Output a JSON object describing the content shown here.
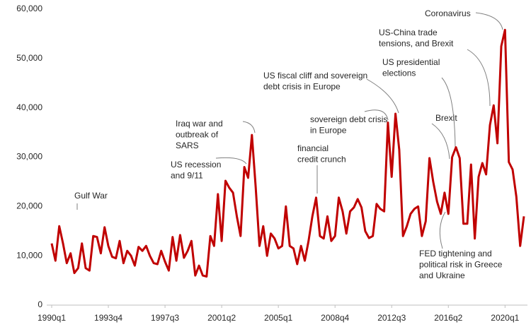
{
  "chart_data": {
    "type": "line",
    "categories": [
      "1990q1",
      null,
      null,
      null,
      null,
      null,
      null,
      null,
      null,
      null,
      null,
      null,
      null,
      null,
      null,
      "1993q4",
      null,
      null,
      null,
      null,
      null,
      null,
      null,
      null,
      null,
      null,
      null,
      null,
      null,
      null,
      "1997q3",
      null,
      null,
      null,
      null,
      null,
      null,
      null,
      null,
      null,
      null,
      null,
      null,
      null,
      null,
      "2001q2",
      null,
      null,
      null,
      null,
      null,
      null,
      null,
      null,
      null,
      null,
      null,
      null,
      null,
      null,
      "2005q1",
      null,
      null,
      null,
      null,
      null,
      null,
      null,
      null,
      null,
      null,
      null,
      null,
      null,
      null,
      "2008q4",
      null,
      null,
      null,
      null,
      null,
      null,
      null,
      null,
      null,
      null,
      null,
      null,
      null,
      null,
      "2012q3",
      null,
      null,
      null,
      null,
      null,
      null,
      null,
      null,
      null,
      null,
      null,
      null,
      null,
      null,
      "2016q2",
      null,
      null,
      null,
      null,
      null,
      null,
      null,
      null,
      null,
      null,
      null,
      null,
      null,
      null,
      "2020q1",
      null,
      null,
      null,
      null,
      null
    ],
    "values": [
      12500,
      9000,
      16000,
      12500,
      8500,
      10500,
      6500,
      7500,
      12500,
      7500,
      7000,
      14000,
      13800,
      10500,
      15800,
      12000,
      9800,
      9500,
      13000,
      8500,
      11000,
      10000,
      8000,
      11800,
      11000,
      12000,
      10000,
      8500,
      8300,
      11000,
      8800,
      7000,
      13800,
      9000,
      14200,
      9600,
      11000,
      13000,
      6000,
      8000,
      6000,
      5800,
      14000,
      12000,
      22500,
      13000,
      25200,
      23800,
      22800,
      18000,
      14000,
      28000,
      25800,
      34500,
      24000,
      12000,
      16000,
      10000,
      14500,
      13500,
      11500,
      12000,
      20000,
      12000,
      11500,
      8300,
      12000,
      9000,
      13000,
      18000,
      21800,
      14000,
      13500,
      18000,
      13000,
      14000,
      21800,
      19000,
      14500,
      19000,
      19800,
      21500,
      19800,
      15000,
      13600,
      14000,
      20500,
      19500,
      19000,
      37000,
      26000,
      38800,
      31500,
      14000,
      16000,
      18500,
      19500,
      20000,
      14000,
      17000,
      29800,
      25000,
      21000,
      18500,
      22800,
      18500,
      30000,
      32000,
      29800,
      16500,
      16500,
      28500,
      13500,
      26000,
      28800,
      26500,
      36500,
      40500,
      32800,
      52500,
      55800,
      29000,
      27500,
      22000,
      12000,
      18000
    ],
    "color": "#c00000",
    "ylim": [
      0,
      60000
    ],
    "yticks": [
      0,
      {
        "value": 10000,
        "label": "10,000"
      },
      {
        "value": 20000,
        "label": "20,000"
      },
      {
        "value": 30000,
        "label": "30,000"
      },
      {
        "value": 40000,
        "label": "40,000"
      },
      {
        "value": 50000,
        "label": "50,000"
      },
      {
        "value": 60000,
        "label": "60,000"
      }
    ],
    "annotations": [
      [
        "Gulf War"
      ],
      [
        "US recession",
        "and 9/11"
      ],
      [
        "Iraq war and",
        "outbreak of",
        "SARS"
      ],
      [
        "financial",
        "credit crunch"
      ],
      [
        "sovereign debt crisis",
        "in Europe"
      ],
      [
        "US fiscal cliff and sovereign",
        "debt crisis in Europe"
      ],
      [
        "Brexit"
      ],
      [
        "US presidential",
        "elections"
      ],
      [
        "US-China trade",
        "tensions, and Brexit"
      ],
      [
        "Coronavirus"
      ],
      [
        "FED tightening  and",
        "political risk in Greece",
        "and Ukraine"
      ]
    ]
  }
}
